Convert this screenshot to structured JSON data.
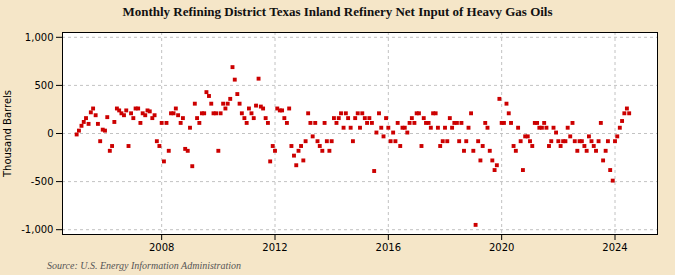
{
  "chart_data": {
    "type": "scatter",
    "title": "Monthly Refining District Texas Inland Refinery Net Input of Heavy Gas Oils",
    "ylabel": "Thousand Barrels",
    "source": "Source: U.S. Energy Information Administration",
    "color": "#cc0000",
    "marker": "square",
    "grid": true,
    "xlim": [
      2004.5,
      2025.5
    ],
    "xticks": [
      2008,
      2012,
      2016,
      2020,
      2024
    ],
    "ylim": [
      -1050,
      1050
    ],
    "yticks": [
      {
        "value": -1000,
        "label": "-1,000"
      },
      -500,
      0,
      500,
      {
        "value": 1000,
        "label": "1,000"
      }
    ],
    "x": [
      2005.0,
      2005.08,
      2005.17,
      2005.25,
      2005.33,
      2005.42,
      2005.5,
      2005.58,
      2005.67,
      2005.75,
      2005.83,
      2005.92,
      2006.0,
      2006.08,
      2006.17,
      2006.25,
      2006.33,
      2006.42,
      2006.5,
      2006.58,
      2006.67,
      2006.75,
      2006.83,
      2006.92,
      2007.0,
      2007.08,
      2007.17,
      2007.25,
      2007.33,
      2007.42,
      2007.5,
      2007.58,
      2007.67,
      2007.75,
      2007.83,
      2007.92,
      2008.0,
      2008.08,
      2008.17,
      2008.25,
      2008.33,
      2008.42,
      2008.5,
      2008.58,
      2008.67,
      2008.75,
      2008.83,
      2008.92,
      2009.0,
      2009.08,
      2009.17,
      2009.25,
      2009.33,
      2009.42,
      2009.5,
      2009.58,
      2009.67,
      2009.75,
      2009.83,
      2009.92,
      2010.0,
      2010.08,
      2010.17,
      2010.25,
      2010.33,
      2010.42,
      2010.5,
      2010.58,
      2010.67,
      2010.75,
      2010.83,
      2010.92,
      2011.0,
      2011.08,
      2011.17,
      2011.25,
      2011.33,
      2011.42,
      2011.5,
      2011.58,
      2011.67,
      2011.75,
      2011.83,
      2011.92,
      2012.0,
      2012.08,
      2012.17,
      2012.25,
      2012.33,
      2012.42,
      2012.5,
      2012.58,
      2012.67,
      2012.75,
      2012.83,
      2012.92,
      2013.0,
      2013.08,
      2013.17,
      2013.25,
      2013.33,
      2013.42,
      2013.5,
      2013.58,
      2013.67,
      2013.75,
      2013.83,
      2013.92,
      2014.0,
      2014.08,
      2014.17,
      2014.25,
      2014.33,
      2014.42,
      2014.5,
      2014.58,
      2014.67,
      2014.75,
      2014.83,
      2014.92,
      2015.0,
      2015.08,
      2015.17,
      2015.25,
      2015.33,
      2015.42,
      2015.5,
      2015.58,
      2015.67,
      2015.75,
      2015.83,
      2015.92,
      2016.0,
      2016.08,
      2016.17,
      2016.25,
      2016.33,
      2016.42,
      2016.5,
      2016.58,
      2016.67,
      2016.75,
      2016.83,
      2016.92,
      2017.0,
      2017.08,
      2017.17,
      2017.25,
      2017.33,
      2017.42,
      2017.5,
      2017.58,
      2017.67,
      2017.75,
      2017.83,
      2017.92,
      2018.0,
      2018.08,
      2018.17,
      2018.25,
      2018.33,
      2018.42,
      2018.5,
      2018.58,
      2018.67,
      2018.75,
      2018.83,
      2018.92,
      2019.0,
      2019.08,
      2019.17,
      2019.25,
      2019.33,
      2019.42,
      2019.5,
      2019.58,
      2019.67,
      2019.75,
      2019.83,
      2019.92,
      2020.0,
      2020.08,
      2020.17,
      2020.25,
      2020.33,
      2020.42,
      2020.5,
      2020.58,
      2020.67,
      2020.75,
      2020.83,
      2020.92,
      2021.0,
      2021.08,
      2021.17,
      2021.25,
      2021.33,
      2021.42,
      2021.5,
      2021.58,
      2021.67,
      2021.75,
      2021.83,
      2021.92,
      2022.0,
      2022.08,
      2022.17,
      2022.25,
      2022.33,
      2022.42,
      2022.5,
      2022.58,
      2022.67,
      2022.75,
      2022.83,
      2022.92,
      2023.0,
      2023.08,
      2023.17,
      2023.25,
      2023.33,
      2023.42,
      2023.5,
      2023.58,
      2023.67,
      2023.75,
      2023.83,
      2023.92,
      2024.0,
      2024.08,
      2024.17,
      2024.25,
      2024.33,
      2024.42,
      2024.5
    ],
    "values": [
      -10,
      30,
      80,
      120,
      160,
      100,
      220,
      260,
      190,
      100,
      -80,
      40,
      30,
      170,
      -180,
      -130,
      120,
      260,
      240,
      210,
      190,
      240,
      -130,
      210,
      160,
      260,
      260,
      110,
      210,
      190,
      240,
      230,
      160,
      190,
      -80,
      -130,
      110,
      -290,
      110,
      -180,
      210,
      210,
      260,
      190,
      110,
      160,
      -160,
      -180,
      60,
      -340,
      310,
      160,
      110,
      210,
      210,
      430,
      390,
      310,
      210,
      210,
      -180,
      210,
      310,
      260,
      310,
      360,
      690,
      560,
      410,
      310,
      210,
      160,
      110,
      260,
      210,
      160,
      290,
      570,
      280,
      260,
      160,
      110,
      -290,
      -130,
      -180,
      260,
      240,
      240,
      160,
      110,
      260,
      -130,
      -230,
      -330,
      -180,
      -130,
      -280,
      -80,
      210,
      110,
      -30,
      110,
      -80,
      -130,
      -180,
      110,
      -80,
      -180,
      -80,
      160,
      110,
      160,
      210,
      60,
      210,
      160,
      60,
      -80,
      160,
      210,
      60,
      210,
      160,
      110,
      160,
      110,
      -390,
      10,
      210,
      60,
      -30,
      160,
      60,
      -80,
      10,
      -80,
      110,
      -130,
      60,
      60,
      10,
      110,
      160,
      110,
      210,
      210,
      -130,
      160,
      110,
      110,
      60,
      210,
      210,
      60,
      -130,
      -80,
      60,
      -80,
      160,
      60,
      110,
      110,
      -80,
      110,
      -180,
      -80,
      60,
      210,
      -180,
      -950,
      -80,
      -280,
      -130,
      110,
      60,
      -180,
      -280,
      -380,
      -330,
      360,
      110,
      110,
      310,
      210,
      110,
      -130,
      -180,
      60,
      -80,
      -380,
      -30,
      -30,
      -80,
      -130,
      110,
      110,
      60,
      60,
      110,
      60,
      -130,
      -80,
      60,
      10,
      -80,
      -130,
      -80,
      -80,
      60,
      -30,
      110,
      -80,
      -180,
      -80,
      -80,
      -130,
      -180,
      -30,
      -80,
      -130,
      -180,
      -80,
      110,
      -280,
      -180,
      -80,
      -380,
      -490,
      -80,
      -30,
      60,
      130,
      210,
      260,
      210
    ]
  }
}
